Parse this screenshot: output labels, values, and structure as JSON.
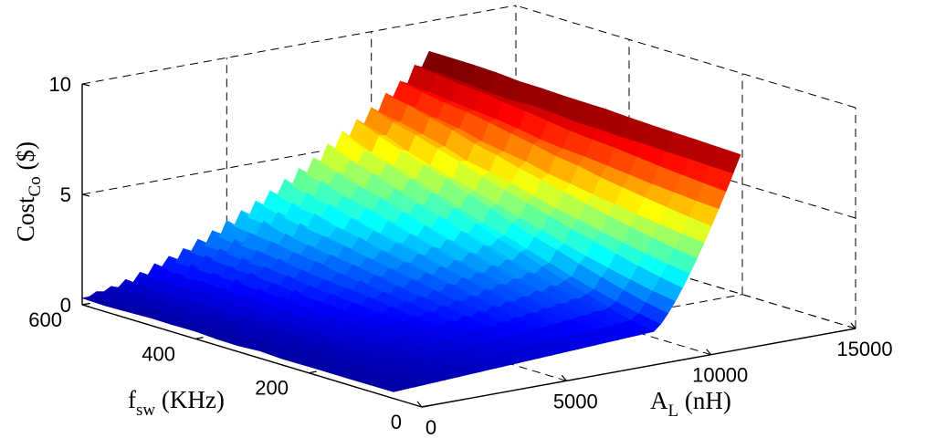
{
  "chart_data": {
    "type": "surface",
    "title": "",
    "xlabel_main": "A",
    "xlabel_sub": "L",
    "xlabel_unit": " (nH)",
    "ylabel_main": "f",
    "ylabel_sub": "sw",
    "ylabel_unit": " (KHz)",
    "zlabel_main": "Cost",
    "zlabel_sub": "Co",
    "zlabel_unit": " ($)",
    "xlim": [
      0,
      15000
    ],
    "ylim": [
      0,
      600
    ],
    "zlim": [
      0,
      10
    ],
    "xticks": [
      0,
      5000,
      10000,
      15000
    ],
    "xtick_labels": [
      "0",
      "5000",
      "10000",
      "15000"
    ],
    "yticks": [
      0,
      200,
      400,
      600
    ],
    "ytick_labels": [
      "0",
      "200",
      "400",
      "600"
    ],
    "zticks": [
      0,
      5,
      10
    ],
    "ztick_labels": [
      "0",
      "5",
      "10"
    ],
    "grid": true,
    "colormap": "jet",
    "surface": {
      "x_range": [
        0,
        12000
      ],
      "y_range": [
        50,
        600
      ],
      "z_color_range": [
        0,
        8.3
      ],
      "description_points": [
        {
          "x": 0,
          "y": 600,
          "z": 0.3
        },
        {
          "x": 3500,
          "y": 600,
          "z": 1.0
        },
        {
          "x": 6000,
          "y": 600,
          "z": 3.0
        },
        {
          "x": 9000,
          "y": 600,
          "z": 5.5
        },
        {
          "x": 12000,
          "y": 600,
          "z": 8.3
        },
        {
          "x": 0,
          "y": 50,
          "z": 0.3
        },
        {
          "x": 5000,
          "y": 50,
          "z": 0.5
        },
        {
          "x": 9000,
          "y": 50,
          "z": 1.0
        },
        {
          "x": 12000,
          "y": 50,
          "z": 8.2
        }
      ]
    }
  }
}
